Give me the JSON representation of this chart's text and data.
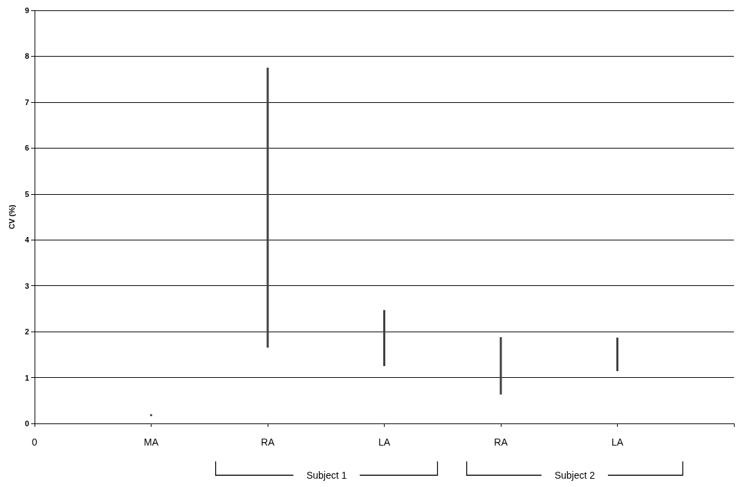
{
  "chart_data": {
    "type": "bar",
    "ylabel": "CV (%)",
    "categories": [
      "0",
      "MA",
      "RA",
      "LA",
      "RA",
      "LA",
      null
    ],
    "base": [
      null,
      0.16,
      1.65,
      1.25,
      0.63,
      1.14,
      null
    ],
    "values": [
      null,
      0.04,
      6.1,
      1.22,
      1.25,
      0.73,
      null
    ],
    "color": "#404040",
    "ylim": [
      0,
      9
    ],
    "yticks": [
      0,
      1,
      2,
      3,
      4,
      5,
      6,
      7,
      8,
      9
    ],
    "grid": "y",
    "annotations": [
      "Subject 1",
      "Subject 2"
    ]
  }
}
